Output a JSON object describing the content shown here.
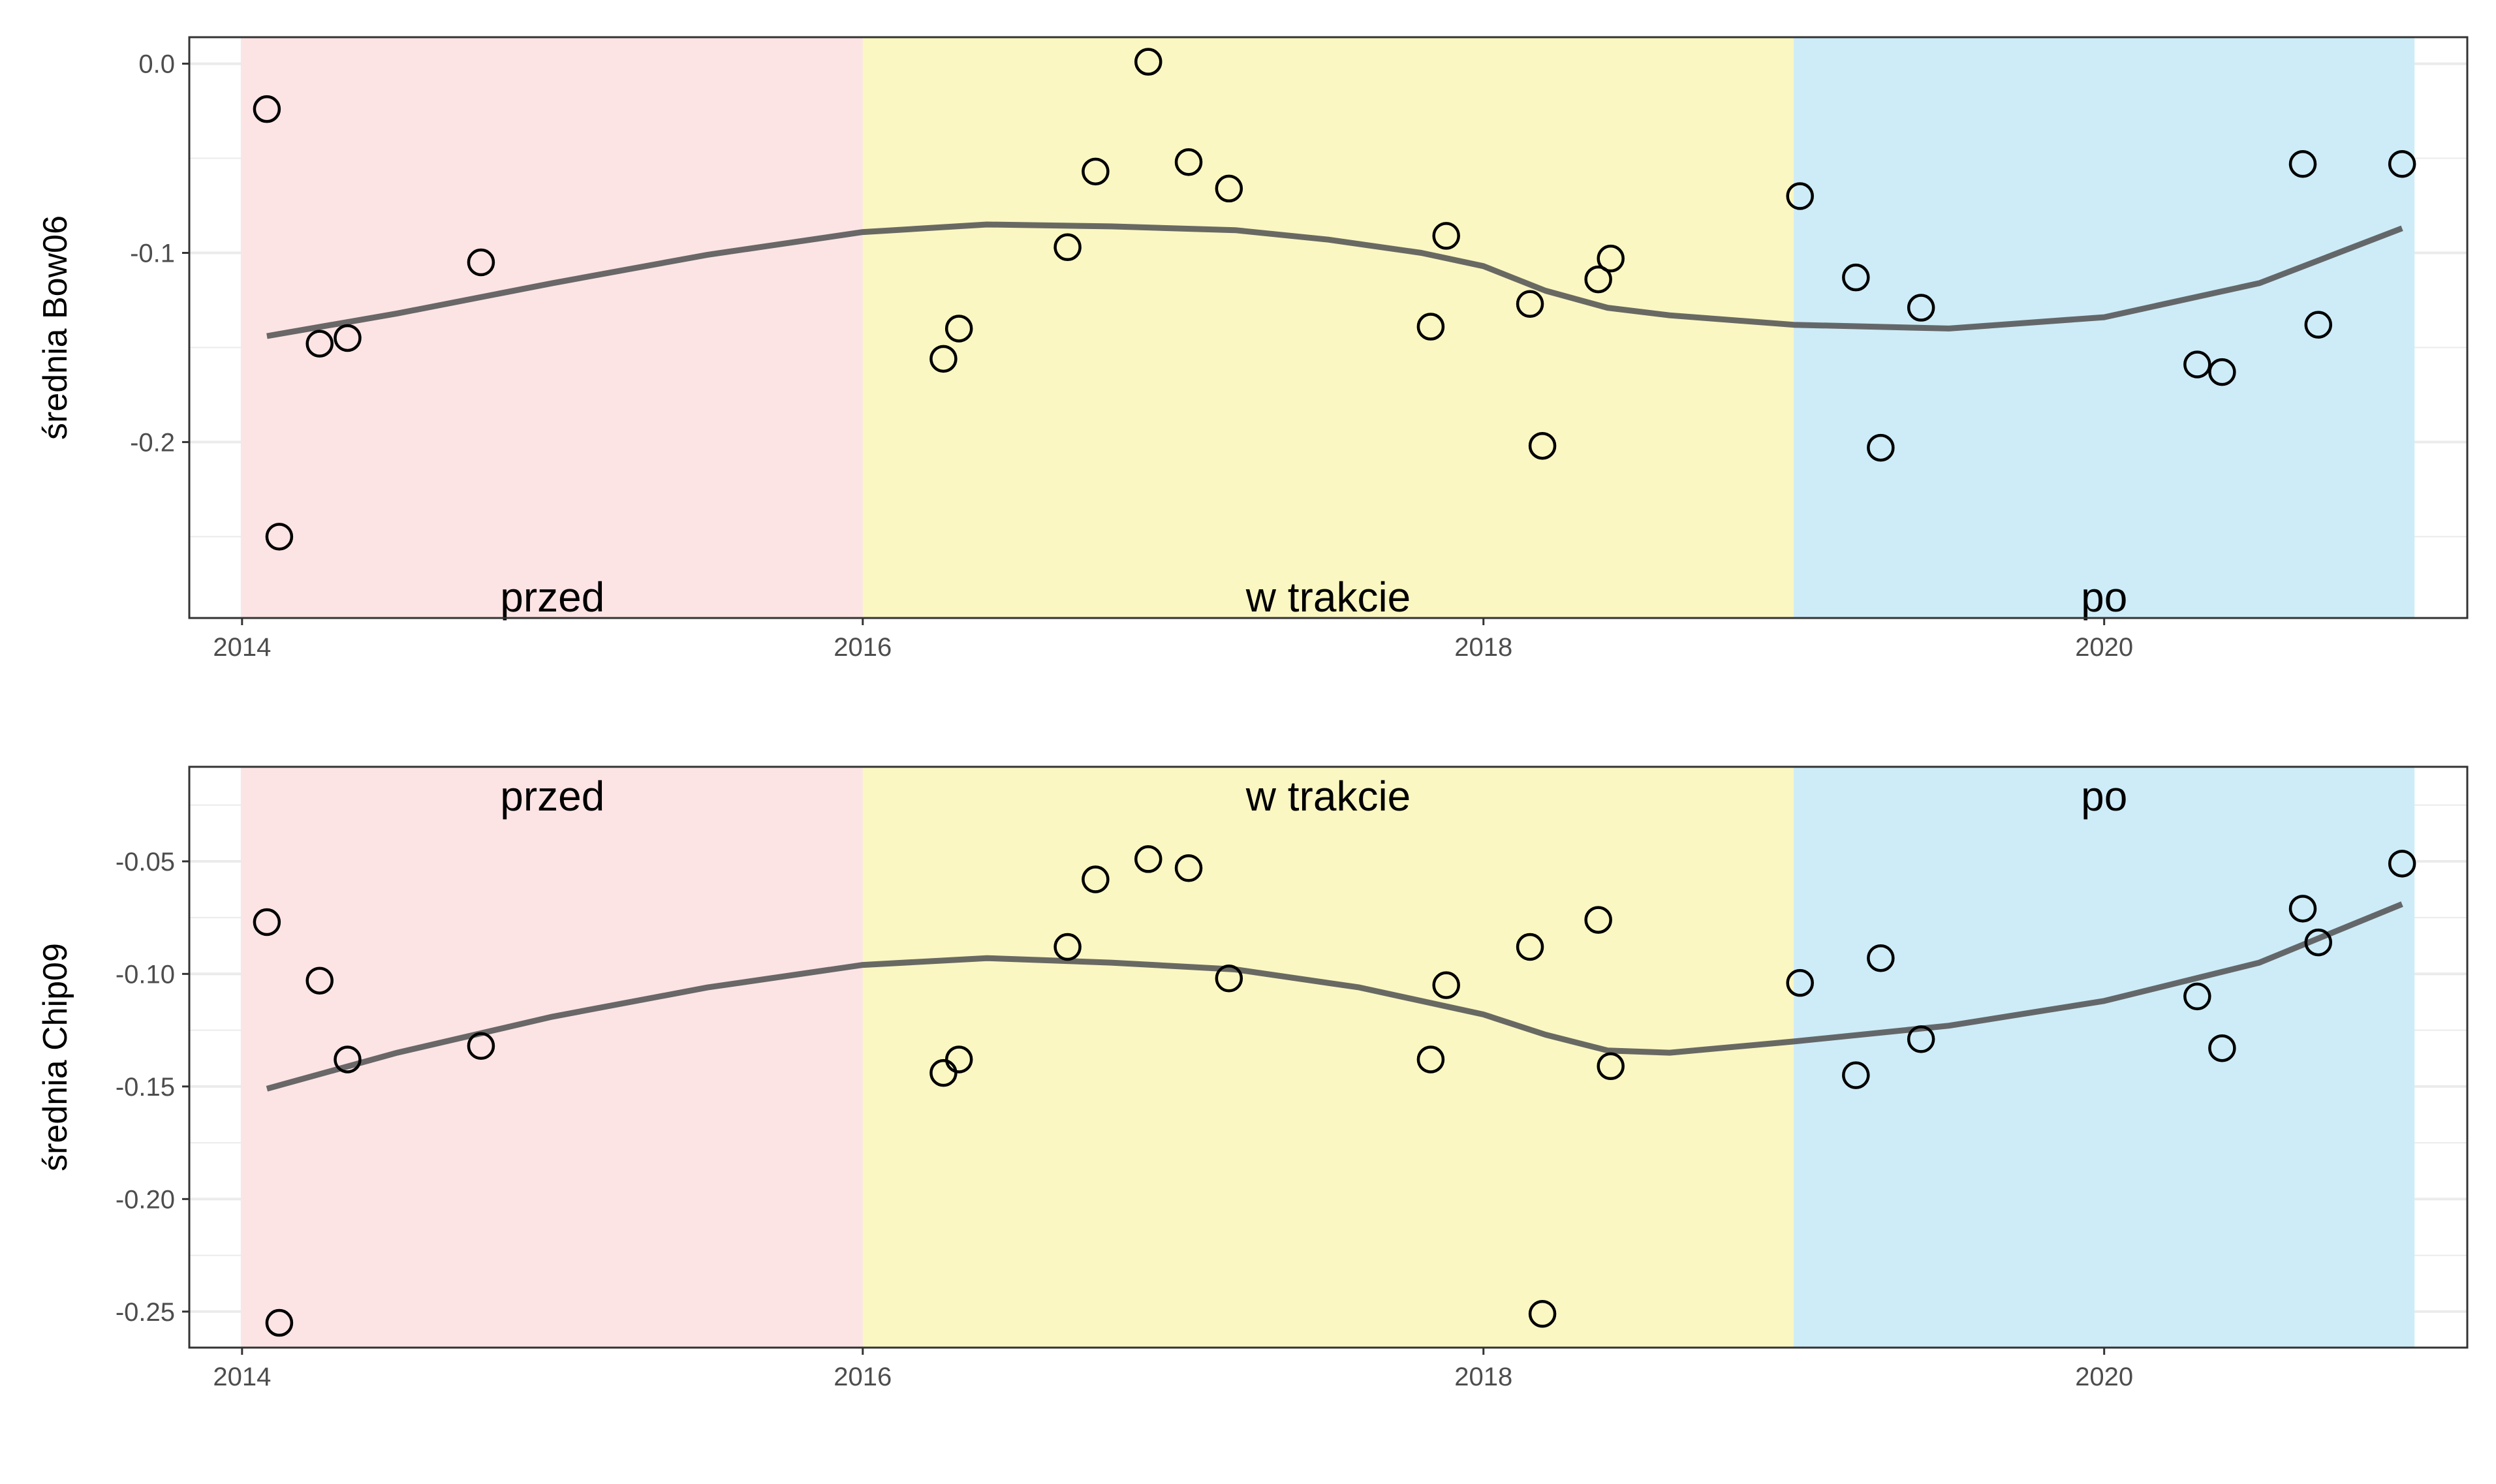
{
  "chart_data": [
    {
      "type": "scatter",
      "ylabel": "średnia Bow06",
      "xlabel": "",
      "xlim": [
        2013.83,
        2021.17
      ],
      "ylim": [
        -0.293,
        0.014
      ],
      "x_ticks": [
        2014,
        2016,
        2018,
        2020
      ],
      "x_tick_labels": [
        "2014",
        "2016",
        "2018",
        "2020"
      ],
      "y_ticks": [
        0.0,
        -0.1,
        -0.2
      ],
      "y_tick_labels": [
        "0.0",
        "-0.1",
        "-0.2"
      ],
      "y_minor": [
        -0.05,
        -0.15,
        -0.25
      ],
      "grid": true,
      "periods": [
        {
          "label": "przed",
          "start": 2014.0,
          "end": 2016.0,
          "color": "#fde4e4"
        },
        {
          "label": "w trakcie",
          "start": 2016.0,
          "end": 2019.0,
          "color": "#faf7c2"
        },
        {
          "label": "po",
          "start": 2019.0,
          "end": 2021.0,
          "color": "#cdecf7"
        }
      ],
      "period_label_y": -0.282,
      "points": [
        {
          "x": 2014.08,
          "y": -0.024
        },
        {
          "x": 2014.12,
          "y": -0.25
        },
        {
          "x": 2014.25,
          "y": -0.148
        },
        {
          "x": 2014.34,
          "y": -0.145
        },
        {
          "x": 2014.77,
          "y": -0.105
        },
        {
          "x": 2016.26,
          "y": -0.156
        },
        {
          "x": 2016.31,
          "y": -0.14
        },
        {
          "x": 2016.66,
          "y": -0.097
        },
        {
          "x": 2016.75,
          "y": -0.057
        },
        {
          "x": 2016.92,
          "y": 0.001
        },
        {
          "x": 2017.05,
          "y": -0.052
        },
        {
          "x": 2017.18,
          "y": -0.066
        },
        {
          "x": 2017.83,
          "y": -0.139
        },
        {
          "x": 2017.88,
          "y": -0.091
        },
        {
          "x": 2018.15,
          "y": -0.127
        },
        {
          "x": 2018.19,
          "y": -0.202
        },
        {
          "x": 2018.37,
          "y": -0.114
        },
        {
          "x": 2018.41,
          "y": -0.103
        },
        {
          "x": 2019.02,
          "y": -0.07
        },
        {
          "x": 2019.2,
          "y": -0.113
        },
        {
          "x": 2019.28,
          "y": -0.203
        },
        {
          "x": 2019.41,
          "y": -0.129
        },
        {
          "x": 2020.3,
          "y": -0.159
        },
        {
          "x": 2020.38,
          "y": -0.163
        },
        {
          "x": 2020.64,
          "y": -0.053
        },
        {
          "x": 2020.69,
          "y": -0.138
        },
        {
          "x": 2020.96,
          "y": -0.053
        }
      ],
      "smooth": {
        "x": [
          2014.08,
          2014.5,
          2015.0,
          2015.5,
          2016.0,
          2016.4,
          2016.8,
          2017.2,
          2017.5,
          2017.8,
          2018.0,
          2018.2,
          2018.4,
          2018.6,
          2019.0,
          2019.5,
          2020.0,
          2020.5,
          2020.96
        ],
        "y": [
          -0.144,
          -0.132,
          -0.116,
          -0.101,
          -0.089,
          -0.085,
          -0.086,
          -0.088,
          -0.093,
          -0.1,
          -0.107,
          -0.12,
          -0.129,
          -0.133,
          -0.138,
          -0.14,
          -0.134,
          -0.116,
          -0.087
        ]
      }
    },
    {
      "type": "scatter",
      "ylabel": "średnia Chip09",
      "xlabel": "",
      "xlim": [
        2013.83,
        2021.17
      ],
      "ylim": [
        -0.266,
        -0.008
      ],
      "x_ticks": [
        2014,
        2016,
        2018,
        2020
      ],
      "x_tick_labels": [
        "2014",
        "2016",
        "2018",
        "2020"
      ],
      "y_ticks": [
        -0.05,
        -0.1,
        -0.15,
        -0.2,
        -0.25
      ],
      "y_tick_labels": [
        "-0.05",
        "-0.10",
        "-0.15",
        "-0.20",
        "-0.25"
      ],
      "y_minor": [
        -0.025,
        -0.075,
        -0.125,
        -0.175,
        -0.225
      ],
      "grid": true,
      "periods": [
        {
          "label": "przed",
          "start": 2014.0,
          "end": 2016.0,
          "color": "#fde4e4"
        },
        {
          "label": "w trakcie",
          "start": 2016.0,
          "end": 2019.0,
          "color": "#faf7c2"
        },
        {
          "label": "po",
          "start": 2019.0,
          "end": 2021.0,
          "color": "#cdecf7"
        }
      ],
      "period_label_y": -0.021,
      "points": [
        {
          "x": 2014.08,
          "y": -0.077
        },
        {
          "x": 2014.12,
          "y": -0.255
        },
        {
          "x": 2014.25,
          "y": -0.103
        },
        {
          "x": 2014.34,
          "y": -0.138
        },
        {
          "x": 2014.77,
          "y": -0.132
        },
        {
          "x": 2016.26,
          "y": -0.144
        },
        {
          "x": 2016.31,
          "y": -0.138
        },
        {
          "x": 2016.66,
          "y": -0.088
        },
        {
          "x": 2016.75,
          "y": -0.058
        },
        {
          "x": 2016.92,
          "y": -0.049
        },
        {
          "x": 2017.05,
          "y": -0.053
        },
        {
          "x": 2017.18,
          "y": -0.102
        },
        {
          "x": 2017.83,
          "y": -0.138
        },
        {
          "x": 2017.88,
          "y": -0.105
        },
        {
          "x": 2018.15,
          "y": -0.088
        },
        {
          "x": 2018.19,
          "y": -0.251
        },
        {
          "x": 2018.37,
          "y": -0.076
        },
        {
          "x": 2018.41,
          "y": -0.141
        },
        {
          "x": 2019.02,
          "y": -0.104
        },
        {
          "x": 2019.2,
          "y": -0.145
        },
        {
          "x": 2019.28,
          "y": -0.093
        },
        {
          "x": 2019.41,
          "y": -0.129
        },
        {
          "x": 2020.3,
          "y": -0.11
        },
        {
          "x": 2020.38,
          "y": -0.133
        },
        {
          "x": 2020.64,
          "y": -0.071
        },
        {
          "x": 2020.69,
          "y": -0.086
        },
        {
          "x": 2020.96,
          "y": -0.051
        }
      ],
      "smooth": {
        "x": [
          2014.08,
          2014.5,
          2015.0,
          2015.5,
          2016.0,
          2016.4,
          2016.8,
          2017.2,
          2017.6,
          2018.0,
          2018.2,
          2018.4,
          2018.6,
          2019.0,
          2019.5,
          2020.0,
          2020.5,
          2020.96
        ],
        "y": [
          -0.151,
          -0.135,
          -0.119,
          -0.106,
          -0.096,
          -0.093,
          -0.095,
          -0.098,
          -0.106,
          -0.118,
          -0.127,
          -0.134,
          -0.135,
          -0.13,
          -0.123,
          -0.112,
          -0.095,
          -0.069
        ]
      }
    }
  ]
}
